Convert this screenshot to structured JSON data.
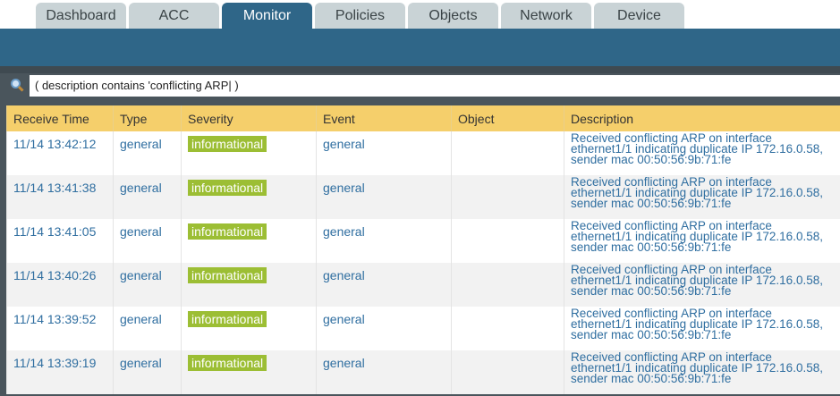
{
  "tabs": [
    "Dashboard",
    "ACC",
    "Monitor",
    "Policies",
    "Objects",
    "Network",
    "Device"
  ],
  "active_tab": "Monitor",
  "search": {
    "value": "( description contains 'conflicting ARP| )"
  },
  "table": {
    "columns": [
      "Receive Time",
      "Type",
      "Severity",
      "Event",
      "Object",
      "Description"
    ],
    "rows": [
      {
        "time": "11/14 13:42:12",
        "type": "general",
        "severity": "informational",
        "event": "general",
        "object": "",
        "description": "Received conflicting ARP on interface ethernet1/1 indicating duplicate IP 172.16.0.58, sender mac 00:50:56:9b:71:fe"
      },
      {
        "time": "11/14 13:41:38",
        "type": "general",
        "severity": "informational",
        "event": "general",
        "object": "",
        "description": "Received conflicting ARP on interface ethernet1/1 indicating duplicate IP 172.16.0.58, sender mac 00:50:56:9b:71:fe"
      },
      {
        "time": "11/14 13:41:05",
        "type": "general",
        "severity": "informational",
        "event": "general",
        "object": "",
        "description": "Received conflicting ARP on interface ethernet1/1 indicating duplicate IP 172.16.0.58, sender mac 00:50:56:9b:71:fe"
      },
      {
        "time": "11/14 13:40:26",
        "type": "general",
        "severity": "informational",
        "event": "general",
        "object": "",
        "description": "Received conflicting ARP on interface ethernet1/1 indicating duplicate IP 172.16.0.58, sender mac 00:50:56:9b:71:fe"
      },
      {
        "time": "11/14 13:39:52",
        "type": "general",
        "severity": "informational",
        "event": "general",
        "object": "",
        "description": "Received conflicting ARP on interface ethernet1/1 indicating duplicate IP 172.16.0.58, sender mac 00:50:56:9b:71:fe"
      },
      {
        "time": "11/14 13:39:19",
        "type": "general",
        "severity": "informational",
        "event": "general",
        "object": "",
        "description": "Received conflicting ARP on interface ethernet1/1 indicating duplicate IP 172.16.0.58, sender mac 00:50:56:9b:71:fe"
      }
    ]
  },
  "colors": {
    "nav": "#2f6688",
    "header": "#f5cf6b",
    "badge": "#9cbe34",
    "link": "#2f6ea0"
  }
}
